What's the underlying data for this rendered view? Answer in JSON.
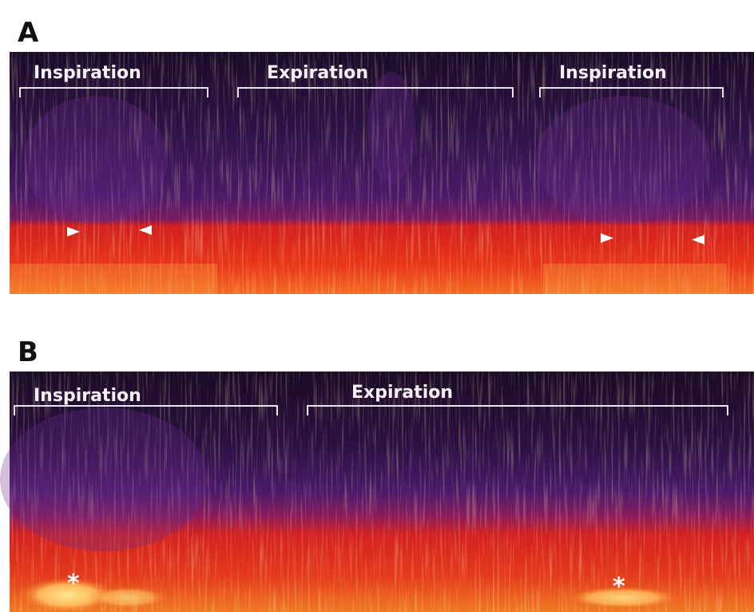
{
  "panels": [
    {
      "label": "A",
      "phases": [
        "Inspiration",
        "Expiration",
        "Inspiration"
      ]
    },
    {
      "label": "B",
      "phases": [
        "Inspiration",
        "Expiration"
      ],
      "markers": [
        "*",
        "*"
      ]
    }
  ]
}
